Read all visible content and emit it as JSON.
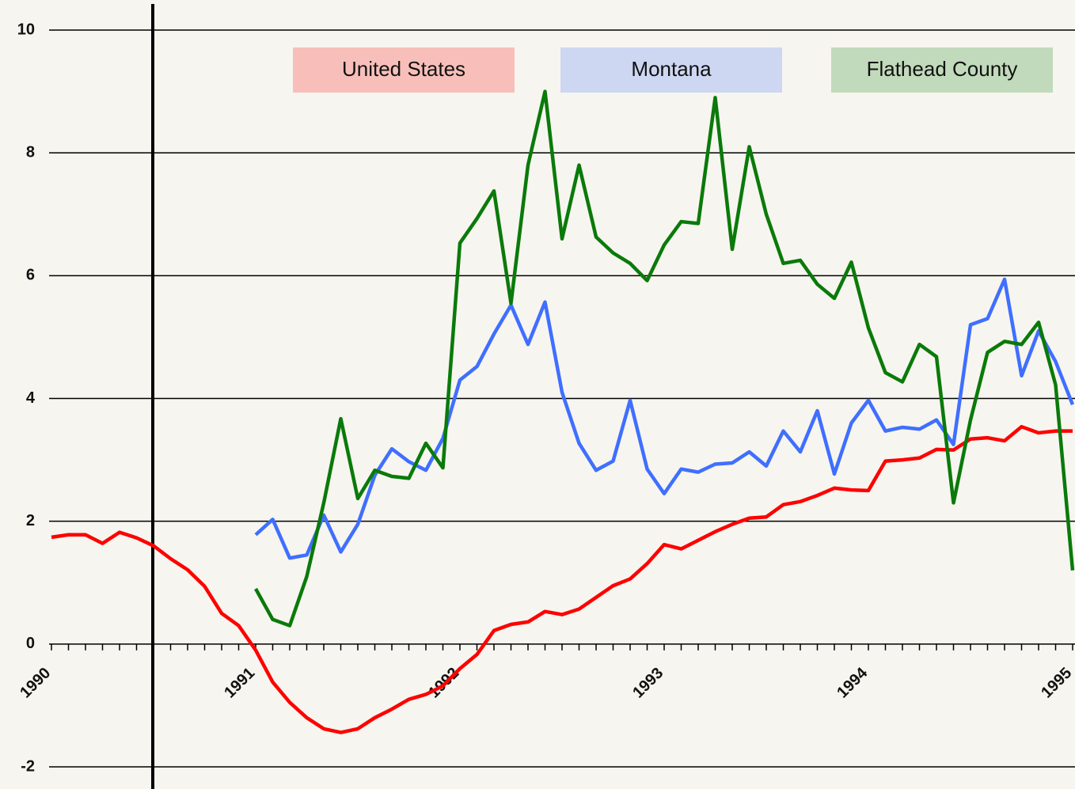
{
  "chart_data": {
    "type": "line",
    "categories": [
      "1990",
      null,
      null,
      null,
      null,
      null,
      null,
      null,
      null,
      null,
      null,
      null,
      "1991",
      null,
      null,
      null,
      null,
      null,
      null,
      null,
      null,
      null,
      null,
      null,
      "1992",
      null,
      null,
      null,
      null,
      null,
      null,
      null,
      null,
      null,
      null,
      null,
      "1993",
      null,
      null,
      null,
      null,
      null,
      null,
      null,
      null,
      null,
      null,
      null,
      "1994",
      null,
      null,
      null,
      null,
      null,
      null,
      null,
      null,
      null,
      null,
      null,
      "1995"
    ],
    "series": [
      {
        "name": "United States",
        "color": "#ff0000",
        "values": [
          1.74,
          1.78,
          1.78,
          1.64,
          1.82,
          1.73,
          1.6,
          1.39,
          1.21,
          0.94,
          0.5,
          0.3,
          -0.1,
          -0.62,
          -0.95,
          -1.2,
          -1.38,
          -1.44,
          -1.38,
          -1.2,
          -1.06,
          -0.9,
          -0.82,
          -0.68,
          -0.4,
          -0.17,
          0.22,
          0.32,
          0.36,
          0.53,
          0.48,
          0.57,
          0.76,
          0.95,
          1.06,
          1.31,
          1.62,
          1.55,
          1.69,
          1.83,
          1.95,
          2.05,
          2.07,
          2.27,
          2.32,
          2.42,
          2.54,
          2.51,
          2.5,
          2.98,
          3.0,
          3.03,
          3.17,
          3.16,
          3.34,
          3.36,
          3.31,
          3.54,
          3.44,
          3.47,
          3.47
        ]
      },
      {
        "name": "Montana",
        "color": "#3f6fff",
        "values": [
          null,
          null,
          null,
          null,
          null,
          null,
          null,
          null,
          null,
          null,
          null,
          null,
          1.78,
          2.03,
          1.4,
          1.45,
          2.1,
          1.5,
          1.95,
          2.75,
          3.18,
          2.97,
          2.83,
          3.35,
          4.3,
          4.52,
          5.05,
          5.52,
          4.88,
          5.57,
          4.1,
          3.27,
          2.83,
          2.98,
          3.97,
          2.85,
          2.45,
          2.85,
          2.8,
          2.93,
          2.95,
          3.13,
          2.9,
          3.47,
          3.13,
          3.8,
          2.77,
          3.6,
          3.97,
          3.47,
          3.53,
          3.5,
          3.65,
          3.25,
          5.2,
          5.3,
          5.94,
          4.37,
          5.1,
          4.6,
          3.9
        ]
      },
      {
        "name": "Flathead County",
        "color": "#0a7a0a",
        "values": [
          null,
          null,
          null,
          null,
          null,
          null,
          null,
          null,
          null,
          null,
          null,
          null,
          0.9,
          0.4,
          0.3,
          1.1,
          2.3,
          3.67,
          2.37,
          2.83,
          2.73,
          2.7,
          3.27,
          2.87,
          6.53,
          6.93,
          7.38,
          5.55,
          7.8,
          9.0,
          6.6,
          7.8,
          6.63,
          6.37,
          6.2,
          5.92,
          6.5,
          6.88,
          6.85,
          8.9,
          6.43,
          8.1,
          7.0,
          6.2,
          6.25,
          5.86,
          5.63,
          6.22,
          5.15,
          4.42,
          4.27,
          4.88,
          4.68,
          2.3,
          3.65,
          4.75,
          4.93,
          4.88,
          5.24,
          4.22,
          1.2
        ]
      }
    ],
    "ylim": [
      -2,
      10
    ],
    "yticks": [
      -2,
      0,
      2,
      4,
      6,
      8,
      10
    ],
    "grid": true,
    "legend": "top"
  }
}
